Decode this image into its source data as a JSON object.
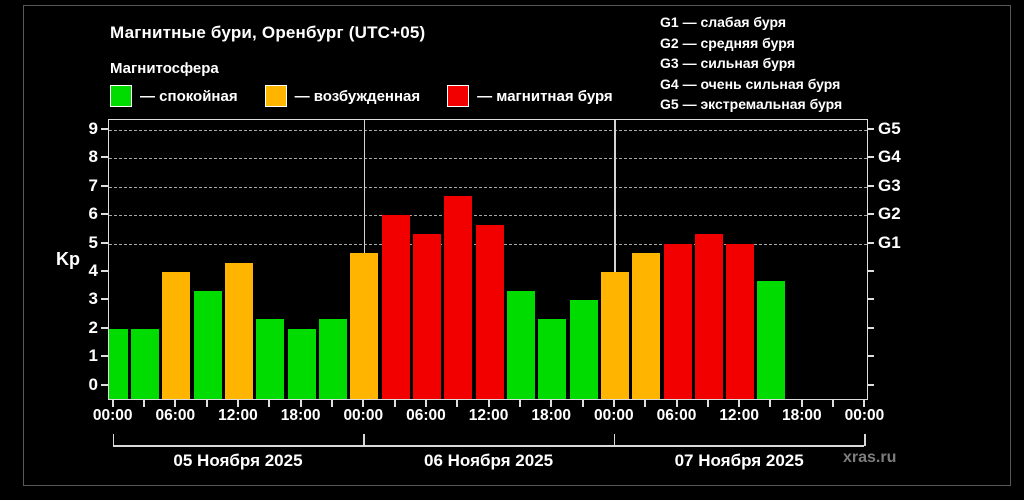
{
  "header": {
    "title": "Магнитные бури, Оренбург (UTC+05)",
    "subtitle": "Магнитосфера"
  },
  "legend": {
    "items": [
      {
        "label": "— спокойная",
        "color": "#00db00"
      },
      {
        "label": "— возбужденная",
        "color": "#ffb400"
      },
      {
        "label": "— магнитная буря",
        "color": "#f20000"
      }
    ]
  },
  "storm_scale_legend": {
    "lines": [
      "G1 — слабая буря",
      "G2 — средняя буря",
      "G3 — сильная буря",
      "G4 — очень сильная буря",
      "G5 — экстремальная буря"
    ]
  },
  "watermark": "xras.ru",
  "chart_data": {
    "type": "bar",
    "title": "Магнитные бури, Оренбург (UTC+05)",
    "ylabel": "Kp",
    "ylim": [
      -0.47,
      9.35
    ],
    "xlim_hours": [
      -0.45,
      72.15
    ],
    "hours_per_bar": 3,
    "grid_on": true,
    "grid_kp_levels": [
      5,
      6,
      7,
      8,
      9
    ],
    "day_boundary_hours": [
      24,
      48
    ],
    "y_ticks": [
      0,
      1,
      2,
      3,
      4,
      5,
      6,
      7,
      8,
      9
    ],
    "x_tick_labels": [
      "00:00",
      "06:00",
      "12:00",
      "18:00",
      "00:00",
      "06:00",
      "12:00",
      "18:00",
      "00:00",
      "06:00",
      "12:00",
      "18:00",
      "00:00"
    ],
    "right_axis_labels": [
      {
        "kp": 5,
        "label": "G1"
      },
      {
        "kp": 6,
        "label": "G2"
      },
      {
        "kp": 7,
        "label": "G3"
      },
      {
        "kp": 8,
        "label": "G4"
      },
      {
        "kp": 9,
        "label": "G5"
      }
    ],
    "colors": {
      "calm": "#00db00",
      "excited": "#ffb400",
      "storm": "#f20000"
    },
    "color_rules": {
      "calm_below_kp": 4,
      "excited_below_kp": 5
    },
    "days": [
      {
        "date": "05 Ноября 2025",
        "kp": [
          2.0,
          2.0,
          4.0,
          3.33,
          4.33,
          2.33,
          2.0,
          2.33
        ]
      },
      {
        "date": "06 Ноября 2025",
        "kp": [
          4.67,
          6.0,
          5.33,
          6.67,
          5.67,
          3.33,
          2.33,
          3.0
        ]
      },
      {
        "date": "07 Ноября 2025",
        "kp": [
          4.0,
          4.67,
          5.0,
          5.33,
          5.0,
          3.67
        ]
      }
    ]
  }
}
